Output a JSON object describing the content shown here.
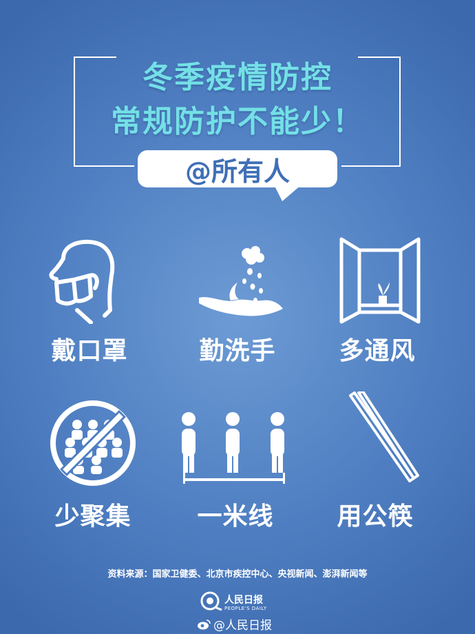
{
  "poster": {
    "title_line1": "冬季疫情防控",
    "title_line2": "常规防护不能少！",
    "mention": "@所有人"
  },
  "tips": [
    {
      "label": "戴口罩",
      "icon": "face-mask-icon"
    },
    {
      "label": "勤洗手",
      "icon": "hand-washing-icon"
    },
    {
      "label": "多通风",
      "icon": "open-window-icon"
    },
    {
      "label": "少聚集",
      "icon": "no-gathering-icon"
    },
    {
      "label": "一米线",
      "icon": "one-meter-distance-icon"
    },
    {
      "label": "用公筷",
      "icon": "serving-chopsticks-icon"
    }
  ],
  "source": "资料来源：国家卫健委、北京市疾控中心、央视新闻、澎湃新闻等",
  "logo": {
    "name": "人民日报",
    "sub": "PEOPLE'S DAILY"
  },
  "watermark": "@人民日报",
  "colors": {
    "background": "#4f7fc2",
    "title": "#74e0e6",
    "text": "#ffffff"
  }
}
